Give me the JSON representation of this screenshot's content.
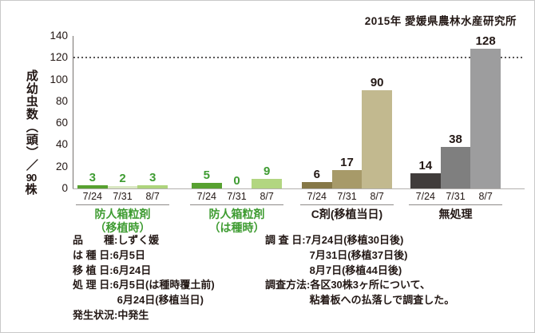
{
  "header": {
    "title": "2015年 愛媛県農林水産研究所"
  },
  "chart_data": {
    "type": "bar",
    "title": "2015年 愛媛県農林水産研究所",
    "ylabel": "成幼虫数（頭）／90株",
    "ylabel_parts": {
      "top": "成幼虫数（頭）／",
      "num": "90",
      "bottom": "株"
    },
    "ylim": [
      0,
      140
    ],
    "ytick_step": 20,
    "yticks": [
      0,
      20,
      40,
      60,
      80,
      100,
      120,
      140
    ],
    "reference_line": 120,
    "grid": false,
    "legend_position": "none",
    "categories": [
      "7/24",
      "7/31",
      "8/7"
    ],
    "groups": [
      {
        "name_lines": [
          "防人箱粒剤",
          "（移植時）"
        ],
        "label_color": "#3f9c32",
        "value_color": "#3f9c32",
        "values": [
          3,
          2,
          3
        ],
        "bar_colors": [
          "#57a130",
          "#d9e7c2",
          "#aed47c"
        ]
      },
      {
        "name_lines": [
          "防人箱粒剤",
          "（は種時）"
        ],
        "label_color": "#3f9c32",
        "value_color": "#3f9c32",
        "values": [
          5,
          0,
          9
        ],
        "bar_colors": [
          "#57a130",
          "#d9e7c2",
          "#b2d681"
        ]
      },
      {
        "name_lines": [
          "C剤(移植当日)"
        ],
        "label_color": "#231815",
        "value_color": "#231815",
        "values": [
          6,
          17,
          90
        ],
        "bar_colors": [
          "#867847",
          "#a79a69",
          "#c2b98f"
        ]
      },
      {
        "name_lines": [
          "無処理"
        ],
        "label_color": "#231815",
        "value_color": "#231815",
        "values": [
          14,
          38,
          128
        ],
        "bar_colors": [
          "#403c3b",
          "#7f7f7f",
          "#9d9d9e"
        ]
      }
    ]
  },
  "notes_left": {
    "lines": [
      "品　　種:しずく媛",
      "は 種 日:6月5日",
      "移 植 日:6月24日",
      "処 理 日:6月5日(は種時覆土前)",
      "　　　　 6月24日(移植当日)",
      "発生状況:中発生"
    ]
  },
  "notes_right": {
    "lines": [
      "調 査 日:7月24日(移植30日後)",
      "　　　　 7月31日(移植37日後)",
      "　　　　 8月7日(移植44日後)",
      "調査方法:各区30株3ヶ所について、",
      "　　　　 粘着板への払落しで調査した。"
    ]
  },
  "colors": {
    "accent_green": "#3f9c32",
    "axis": "#77726f",
    "baseline": "#b3b0ae",
    "reference_dotted": "#595757",
    "text": "#231815",
    "frame_border": "#c9c9c9"
  }
}
